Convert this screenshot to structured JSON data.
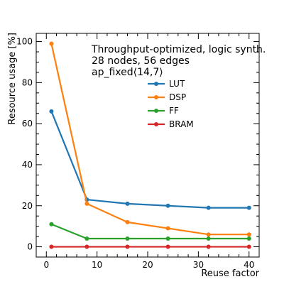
{
  "chart_data": {
    "type": "line",
    "title_lines": [
      "Throughput-optimized, logic synth.",
      "28 nodes, 56 edges",
      "ap_fixed⟨14,7⟩"
    ],
    "xlabel": "Reuse factor",
    "ylabel": "Resource usage [%]",
    "xlim": [
      -2,
      42
    ],
    "ylim": [
      -5,
      104
    ],
    "xticks": [
      0,
      10,
      20,
      30,
      40
    ],
    "yticks": [
      0,
      20,
      40,
      60,
      80,
      100
    ],
    "xtick_labels": [
      "0",
      "10",
      "20",
      "30",
      "40"
    ],
    "ytick_labels": [
      "0",
      "20",
      "40",
      "60",
      "80",
      "100"
    ],
    "grid": false,
    "legend_placement": "upper-right, below title",
    "x": [
      1,
      8,
      16,
      24,
      32,
      40
    ],
    "series": [
      {
        "name": "LUT",
        "color": "#1f77b4",
        "values": [
          66,
          23,
          21,
          20,
          19,
          19
        ]
      },
      {
        "name": "DSP",
        "color": "#ff7f0e",
        "values": [
          99,
          21,
          12,
          9,
          6,
          6
        ]
      },
      {
        "name": "FF",
        "color": "#2ca02c",
        "values": [
          11,
          4,
          4,
          4,
          4,
          4
        ]
      },
      {
        "name": "BRAM",
        "color": "#d62728",
        "values": [
          0,
          0,
          0,
          0,
          0,
          0
        ]
      }
    ]
  }
}
